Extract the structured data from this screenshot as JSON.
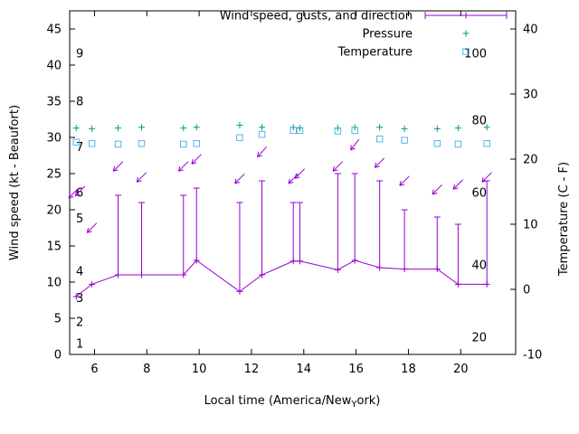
{
  "figure": {
    "background": "#ffffff",
    "border_color": "#000000",
    "text_color": "#000000"
  },
  "legend": {
    "items": [
      {
        "label": "Wind speed, gusts, and direction",
        "marker": "errorline",
        "color": "#9400d3"
      },
      {
        "label": "Pressure",
        "marker": "plus",
        "color": "#009e73"
      },
      {
        "label": "Temperature",
        "marker": "open-square",
        "color": "#56b4e9"
      }
    ]
  },
  "chart_data": {
    "type": "line",
    "title": "",
    "xlabel": {
      "prefix": "Local time (America/New",
      "subscript": "Y",
      "suffix": "ork)",
      "plain": "Local time (America/New_York)"
    },
    "ylabel_left": "Wind speed (kt - Beaufort)",
    "ylabel_right": "Temperature (C - F)",
    "x_axis": {
      "ticks": [
        6,
        8,
        10,
        12,
        14,
        16,
        18,
        20
      ],
      "range": [
        5.05,
        22.1
      ]
    },
    "y_axis_left": {
      "ticks": [
        0,
        5,
        10,
        15,
        20,
        25,
        30,
        35,
        40,
        45
      ],
      "range": [
        0,
        47.5
      ]
    },
    "y_axis_right": {
      "ticks": [
        -10,
        0,
        10,
        20,
        30,
        40
      ],
      "range": [
        -10,
        42.78
      ]
    },
    "beaufort_scale_labels": [
      {
        "label": "1",
        "y": 1.5
      },
      {
        "label": "2",
        "y": 4.5
      },
      {
        "label": "3",
        "y": 7.8
      },
      {
        "label": "4",
        "y": 11.5
      },
      {
        "label": "5",
        "y": 18.8
      },
      {
        "label": "6",
        "y": 22.4
      },
      {
        "label": "7",
        "y": 28.7
      },
      {
        "label": "8",
        "y": 35.0
      },
      {
        "label": "9",
        "y": 41.6
      }
    ],
    "inner_right_scale_labels": [
      {
        "label": "20",
        "y": 2.4
      },
      {
        "label": "40",
        "y": 12.4
      },
      {
        "label": "60",
        "y": 22.4
      },
      {
        "label": "80",
        "y": 32.4
      },
      {
        "label": "100",
        "y": 41.6
      }
    ],
    "x": [
      5.3,
      5.9,
      6.9,
      7.8,
      9.4,
      9.9,
      11.55,
      12.4,
      13.6,
      13.85,
      15.3,
      15.95,
      16.9,
      17.85,
      19.1,
      19.9,
      21.0
    ],
    "series": [
      {
        "name": "wind_speed_kt",
        "axis": "left",
        "color": "#9400d3",
        "values": [
          8.0,
          9.7,
          11.0,
          11.0,
          11.0,
          13.0,
          8.7,
          11.0,
          12.9,
          12.9,
          11.7,
          13.0,
          12.0,
          11.8,
          11.8,
          9.7,
          9.7
        ]
      },
      {
        "name": "wind_gust_kt",
        "axis": "left",
        "color": "#9400d3",
        "values": [
          8.0,
          9.7,
          22.0,
          21.0,
          22.0,
          23.0,
          21.0,
          24.0,
          21.0,
          21.0,
          25.0,
          25.0,
          24.0,
          20.0,
          19.0,
          18.0,
          24.0
        ]
      },
      {
        "name": "pressure_plotted",
        "axis": "left-plot-units",
        "color": "#009e73",
        "values": [
          31.3,
          31.2,
          31.3,
          31.4,
          31.3,
          31.4,
          31.7,
          31.4,
          31.4,
          31.3,
          31.3,
          31.4,
          31.4,
          31.2,
          31.2,
          31.3,
          31.4
        ]
      },
      {
        "name": "temperature_c",
        "axis": "right",
        "color": "#56b4e9",
        "values": [
          22.6,
          22.4,
          22.3,
          22.4,
          22.3,
          22.4,
          23.3,
          23.8,
          24.4,
          24.4,
          24.3,
          24.4,
          23.1,
          22.9,
          22.4,
          22.3,
          22.4
        ]
      }
    ],
    "direction_arrows": {
      "color": "#9400d3",
      "x": [
        5.2,
        5.45,
        5.9,
        6.9,
        7.8,
        9.4,
        9.9,
        11.55,
        12.4,
        13.6,
        13.85,
        15.3,
        15.95,
        16.9,
        17.85,
        19.1,
        19.9,
        21.0
      ],
      "y": [
        22.3,
        22.6,
        17.5,
        26.0,
        24.5,
        26.0,
        27.0,
        24.3,
        28.0,
        24.3,
        25.0,
        26.0,
        29.0,
        26.5,
        24.0,
        22.8,
        23.5,
        24.5
      ],
      "angle_deg": [
        225,
        225,
        225,
        225,
        225,
        225,
        225,
        225,
        228,
        225,
        225,
        225,
        232,
        225,
        225,
        225,
        225,
        225
      ]
    }
  }
}
